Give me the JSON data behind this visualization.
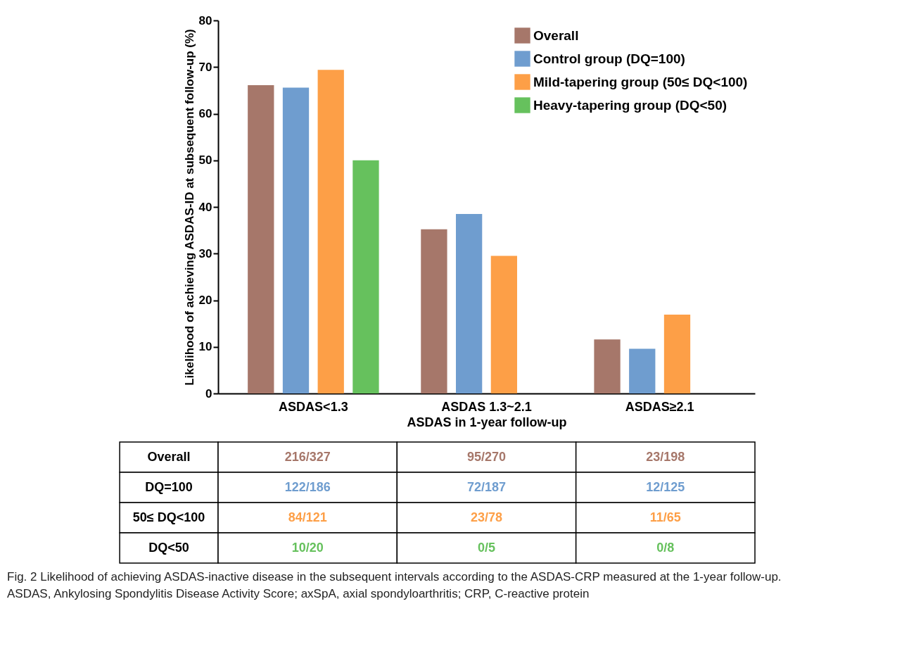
{
  "chart_data": {
    "type": "bar",
    "ylabel": "Likelihood of achieving ASDAS-ID at subsequent follow-up (%)",
    "xlabel": "ASDAS in 1-year follow-up",
    "categories": [
      "ASDAS<1.3",
      "ASDAS 1.3~2.1",
      "ASDAS≥2.1"
    ],
    "ylim": [
      0,
      80
    ],
    "yticks": [
      0,
      10,
      20,
      30,
      40,
      50,
      60,
      70,
      80
    ],
    "grid": false,
    "legend": "top right",
    "series": [
      {
        "name": "Overall",
        "color": "#a6776a",
        "values": [
          66.1,
          35.2,
          11.6
        ],
        "value_labels": [
          "216/327",
          "95/270",
          "23/198"
        ]
      },
      {
        "name": "Control group (DQ=100)",
        "color": "#6f9dcf",
        "values": [
          65.6,
          38.5,
          9.6
        ],
        "value_labels": [
          "122/186",
          "72/187",
          "12/125"
        ]
      },
      {
        "name": "Mild-tapering group (50≤ DQ<100)",
        "color": "#fd9f47",
        "values": [
          69.4,
          29.5,
          16.9
        ],
        "value_labels": [
          "84/121",
          "23/78",
          "11/65"
        ]
      },
      {
        "name": "Heavy-tapering group (DQ<50)",
        "color": "#66c15d",
        "values": [
          50,
          0,
          0
        ],
        "value_labels": [
          "10/20",
          "0/5",
          "0/8"
        ]
      }
    ],
    "annotations": [
      "Overall",
      "DQ=100",
      "50≤ DQ<100",
      "DQ<50",
      "Fig. 2 Likelihood of achieving ASDAS-inactive disease in the subsequent intervals according to the ASDAS-CRP measured at the 1-year follow-up.",
      "ASDAS, Ankylosing Spondylitis Disease Activity Score; axSpA, axial spondyloarthritis; CRP, C-reactive protein"
    ]
  }
}
